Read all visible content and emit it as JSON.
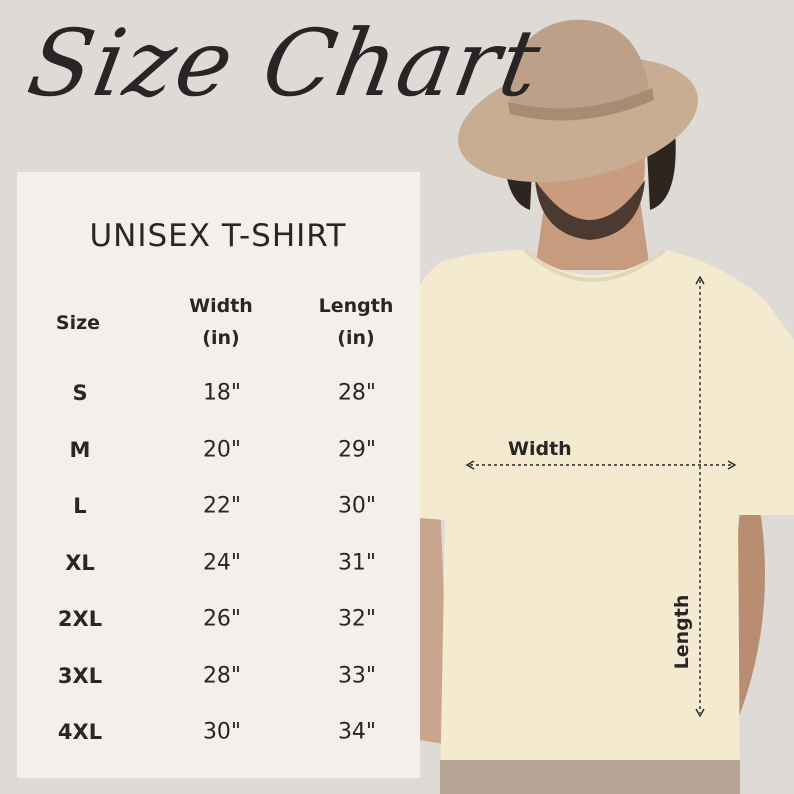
{
  "title": "Size Chart",
  "product": "UNISEX T-SHIRT",
  "table": {
    "headers": {
      "size": "Size",
      "width": "Width",
      "width_unit": "(in)",
      "length": "Length",
      "length_unit": "(in)"
    },
    "rows": [
      {
        "size": "S",
        "width": "18\"",
        "length": "28\""
      },
      {
        "size": "M",
        "width": "20\"",
        "length": "29\""
      },
      {
        "size": "L",
        "width": "22\"",
        "length": "30\""
      },
      {
        "size": "XL",
        "width": "24\"",
        "length": "31\""
      },
      {
        "size": "2XL",
        "width": "26\"",
        "length": "32\""
      },
      {
        "size": "3XL",
        "width": "28\"",
        "length": "33\""
      },
      {
        "size": "4XL",
        "width": "30\"",
        "length": "34\""
      }
    ]
  },
  "diagram": {
    "width_label": "Width",
    "length_label": "Length"
  },
  "colors": {
    "background": "#dedad6",
    "panel": "#f3f0eb",
    "shirt": "#f3ead0",
    "hat": "#c9ad93",
    "text": "#2a2628"
  }
}
